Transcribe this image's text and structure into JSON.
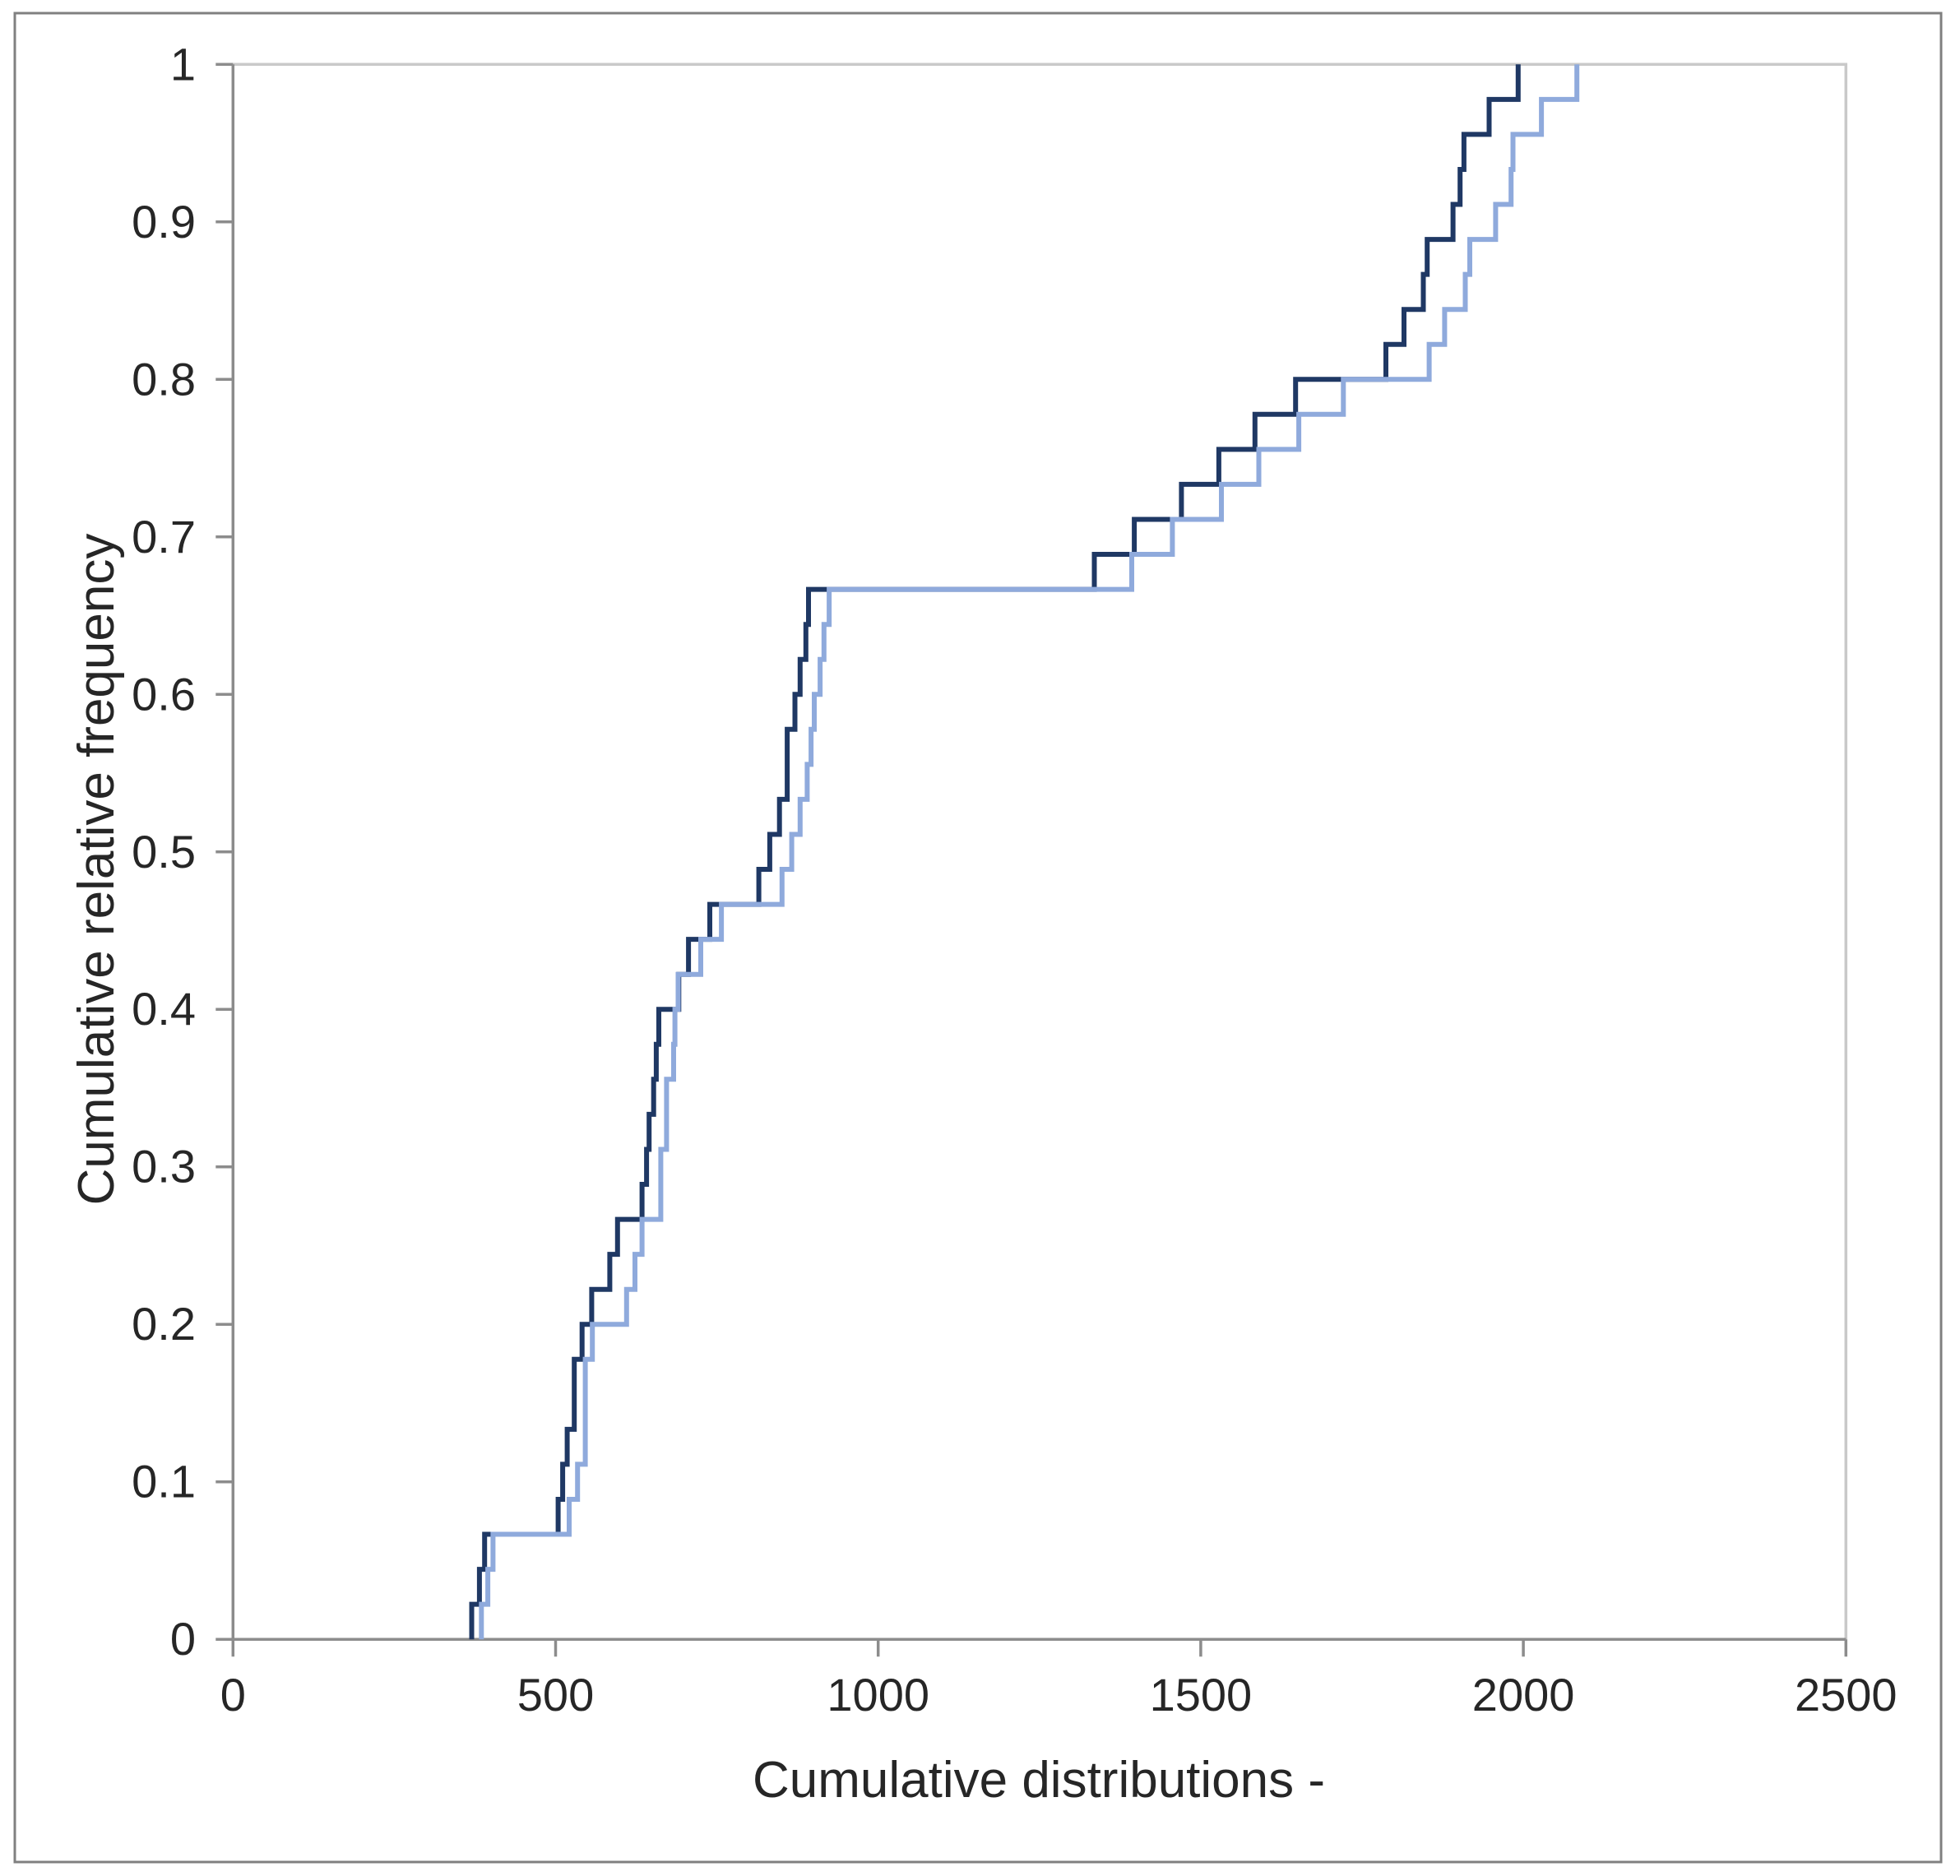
{
  "chart_data": {
    "type": "line",
    "subtype": "cumulative-step-ecdf",
    "title": "",
    "xlabel": "Cumulative distributions -",
    "ylabel": "Cumulative relative frequency",
    "xlim": [
      0,
      2500
    ],
    "ylim": [
      0,
      1
    ],
    "x_ticks": [
      0,
      500,
      1000,
      1500,
      2000,
      2500
    ],
    "x_tick_labels": [
      "0",
      "500",
      "1000",
      "1500",
      "2000",
      "2500"
    ],
    "y_ticks": [
      0,
      0.1,
      0.2,
      0.3,
      0.4,
      0.5,
      0.6,
      0.7,
      0.8,
      0.9,
      1
    ],
    "y_tick_labels": [
      "0",
      "0.1",
      "0.2",
      "0.3",
      "0.4",
      "0.5",
      "0.6",
      "0.7",
      "0.8",
      "0.9",
      "1"
    ],
    "grid": "off",
    "legend": "none",
    "step_increment": "1/45 of cumulative relative frequency per data point",
    "series": [
      {
        "name": "series-dark-blue",
        "color": "#1F3864",
        "points_count": 45,
        "x_values": [
          370,
          382,
          390,
          504,
          511,
          518,
          529,
          529,
          541,
          556,
          584,
          596,
          634,
          641,
          645,
          652,
          656,
          660,
          691,
          706,
          739,
          815,
          832,
          847,
          859,
          859,
          871,
          879,
          888,
          892,
          1335,
          1397,
          1470,
          1528,
          1584,
          1647,
          1787,
          1815,
          1845,
          1851,
          1891,
          1902,
          1908,
          1947,
          1992
        ]
      },
      {
        "name": "series-light-blue",
        "color": "#8FAADC",
        "points_count": 45,
        "x_values": [
          385,
          395,
          403,
          521,
          534,
          546,
          546,
          546,
          557,
          610,
          623,
          634,
          663,
          663,
          672,
          672,
          683,
          685,
          690,
          725,
          757,
          851,
          866,
          879,
          890,
          896,
          901,
          910,
          916,
          924,
          1393,
          1456,
          1532,
          1590,
          1652,
          1721,
          1854,
          1878,
          1910,
          1917,
          1957,
          1981,
          1984,
          2028,
          2083
        ]
      }
    ],
    "colors": {
      "axis_line": "#8C8C8C",
      "plot_border": "#C9C9C9",
      "outer_frame": "#808080",
      "tick_text": "#262626",
      "background": "#FFFFFF"
    }
  }
}
